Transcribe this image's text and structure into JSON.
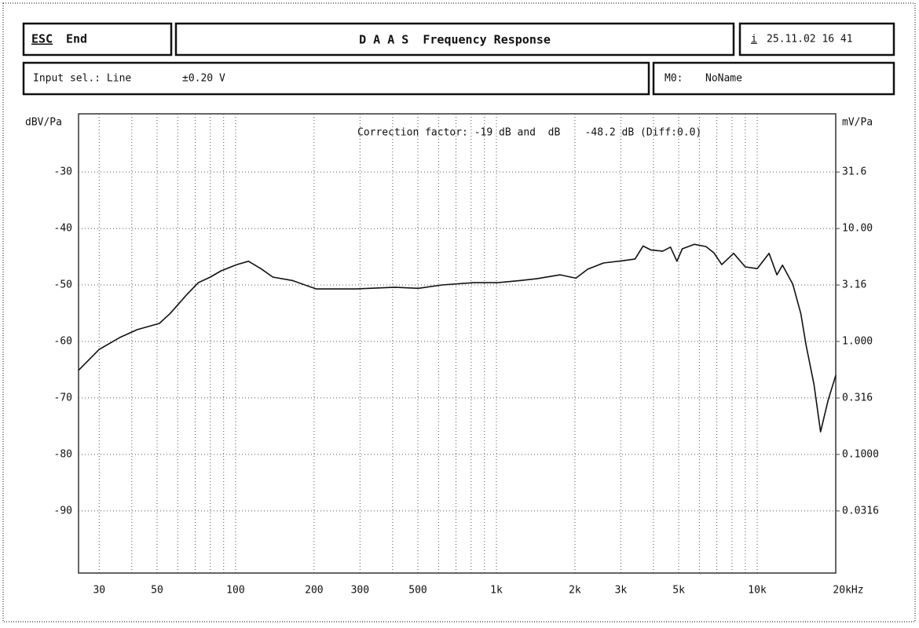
{
  "header": {
    "esc_key": "ESC",
    "esc_label": "End",
    "title": "D A A S  Frequency Response",
    "info_key": "i",
    "datetime": "25.11.02 16 41"
  },
  "status": {
    "input_label": "Input sel.: Line",
    "input_range": "±0.20 V",
    "memory_key": "M0:",
    "memory_name": "NoName"
  },
  "chart_data": {
    "type": "line",
    "y_label": "dBV/Pa",
    "y2_label": "mV/Pa",
    "annotation": "Correction factor: -19 dB and  dB    -48.2 dB (Diff:0.0)",
    "xscale": "log",
    "y2scale": "log",
    "grid": true,
    "xlim": [
      25,
      20000
    ],
    "ylim": [
      -101,
      -19.7
    ],
    "y2lim": [
      0.00891,
      103.5
    ],
    "xticks": [
      30,
      50,
      100,
      200,
      300,
      500,
      {
        "value": 1000,
        "label": "1k"
      },
      {
        "value": 2000,
        "label": "2k"
      },
      {
        "value": 3000,
        "label": "3k"
      },
      {
        "value": 5000,
        "label": "5k"
      },
      {
        "value": 10000,
        "label": "10k"
      },
      {
        "value": 20000,
        "label": "20kHz"
      }
    ],
    "xminorticks": [
      40,
      60,
      70,
      80,
      90,
      400,
      600,
      700,
      800,
      900,
      4000,
      6000,
      7000,
      8000,
      9000
    ],
    "yticks": [
      -30,
      -40,
      -50,
      -60,
      -70,
      -80,
      -90
    ],
    "y2ticks": [
      31.6,
      {
        "value": 10,
        "label": "10.00"
      },
      3.16,
      {
        "value": 1,
        "label": "1.000"
      },
      0.316,
      {
        "value": 0.1,
        "label": "0.1000"
      },
      0.0316
    ],
    "x": [
      25,
      30,
      36,
      42,
      51,
      56,
      65,
      72,
      80,
      88,
      101,
      112,
      125,
      139,
      165,
      204,
      288,
      408,
      502,
      619,
      818,
      1007,
      1240,
      1426,
      1756,
      2018,
      2240,
      2575,
      3063,
      3400,
      3650,
      3910,
      4340,
      4650,
      4920,
      5160,
      5735,
      6360,
      6820,
      7310,
      8120,
      9000,
      10000,
      11100,
      11900,
      12500,
      13700,
      14700,
      15400,
      16500,
      17500,
      18700,
      20000
    ],
    "series": [
      {
        "color": "#111111",
        "values": [
          -65.1,
          -61.4,
          -59.3,
          -57.9,
          -56.8,
          -55.1,
          -51.7,
          -49.6,
          -48.6,
          -47.5,
          -46.4,
          -45.8,
          -47.1,
          -48.6,
          -49.2,
          -50.7,
          -50.7,
          -50.4,
          -50.6,
          -50.0,
          -49.6,
          -49.6,
          -49.2,
          -48.9,
          -48.2,
          -48.8,
          -47.2,
          -46.1,
          -45.7,
          -45.4,
          -43.1,
          -43.8,
          -44.0,
          -43.3,
          -45.8,
          -43.6,
          -42.8,
          -43.2,
          -44.3,
          -46.4,
          -44.4,
          -46.8,
          -47.1,
          -44.4,
          -48.2,
          -46.5,
          -49.9,
          -55.1,
          -60.7,
          -67.6,
          -76.0,
          -70.4,
          -66.0
        ]
      }
    ]
  }
}
